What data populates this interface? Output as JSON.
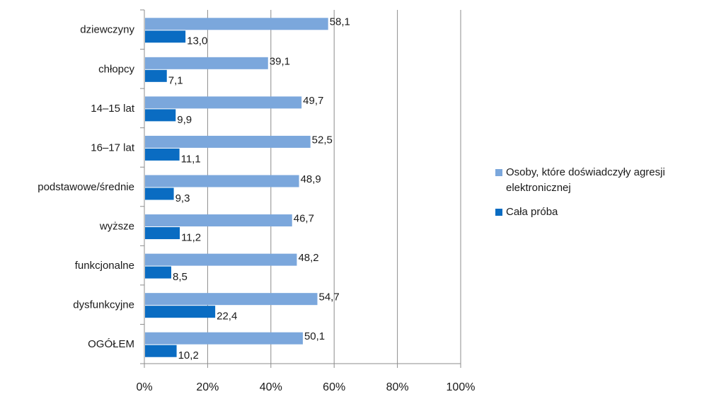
{
  "chart_data": {
    "type": "bar",
    "orientation": "horizontal",
    "categories": [
      "dziewczyny",
      "chłopcy",
      "14–15 lat",
      "16–17 lat",
      "podstawowe/średnie",
      "wyższe",
      "funkcjonalne",
      "dysfunkcyjne",
      "OGÓŁEM"
    ],
    "series": [
      {
        "name": "Osoby, które doświadczyły agresji elektronicznej",
        "color": "#7ba7dc",
        "values": [
          58.1,
          39.1,
          49.7,
          52.5,
          48.9,
          46.7,
          48.2,
          54.7,
          50.1
        ],
        "labels": [
          "58,1",
          "39,1",
          "49,7",
          "52,5",
          "48,9",
          "46,7",
          "48,2",
          "54,7",
          "50,1"
        ]
      },
      {
        "name": "Cała próba",
        "color": "#0a6cc2",
        "values": [
          13.0,
          7.1,
          9.9,
          11.1,
          9.3,
          11.2,
          8.5,
          22.4,
          10.2
        ],
        "labels": [
          "13,0",
          "7,1",
          "9,9",
          "11,1",
          "9,3",
          "11,2",
          "8,5",
          "22,4",
          "10,2"
        ]
      }
    ],
    "xlim": [
      0,
      100
    ],
    "xticks": [
      0,
      20,
      40,
      60,
      80,
      100
    ],
    "xtick_labels": [
      "0%",
      "20%",
      "40%",
      "60%",
      "80%",
      "100%"
    ],
    "grid": "vertical",
    "legend_position": "right",
    "legend": [
      {
        "lines": [
          "Osoby, które doświadczyły agresji",
          "elektronicznej"
        ],
        "color": "#7ba7dc"
      },
      {
        "lines": [
          "Cała próba"
        ],
        "color": "#0a6cc2"
      }
    ]
  }
}
